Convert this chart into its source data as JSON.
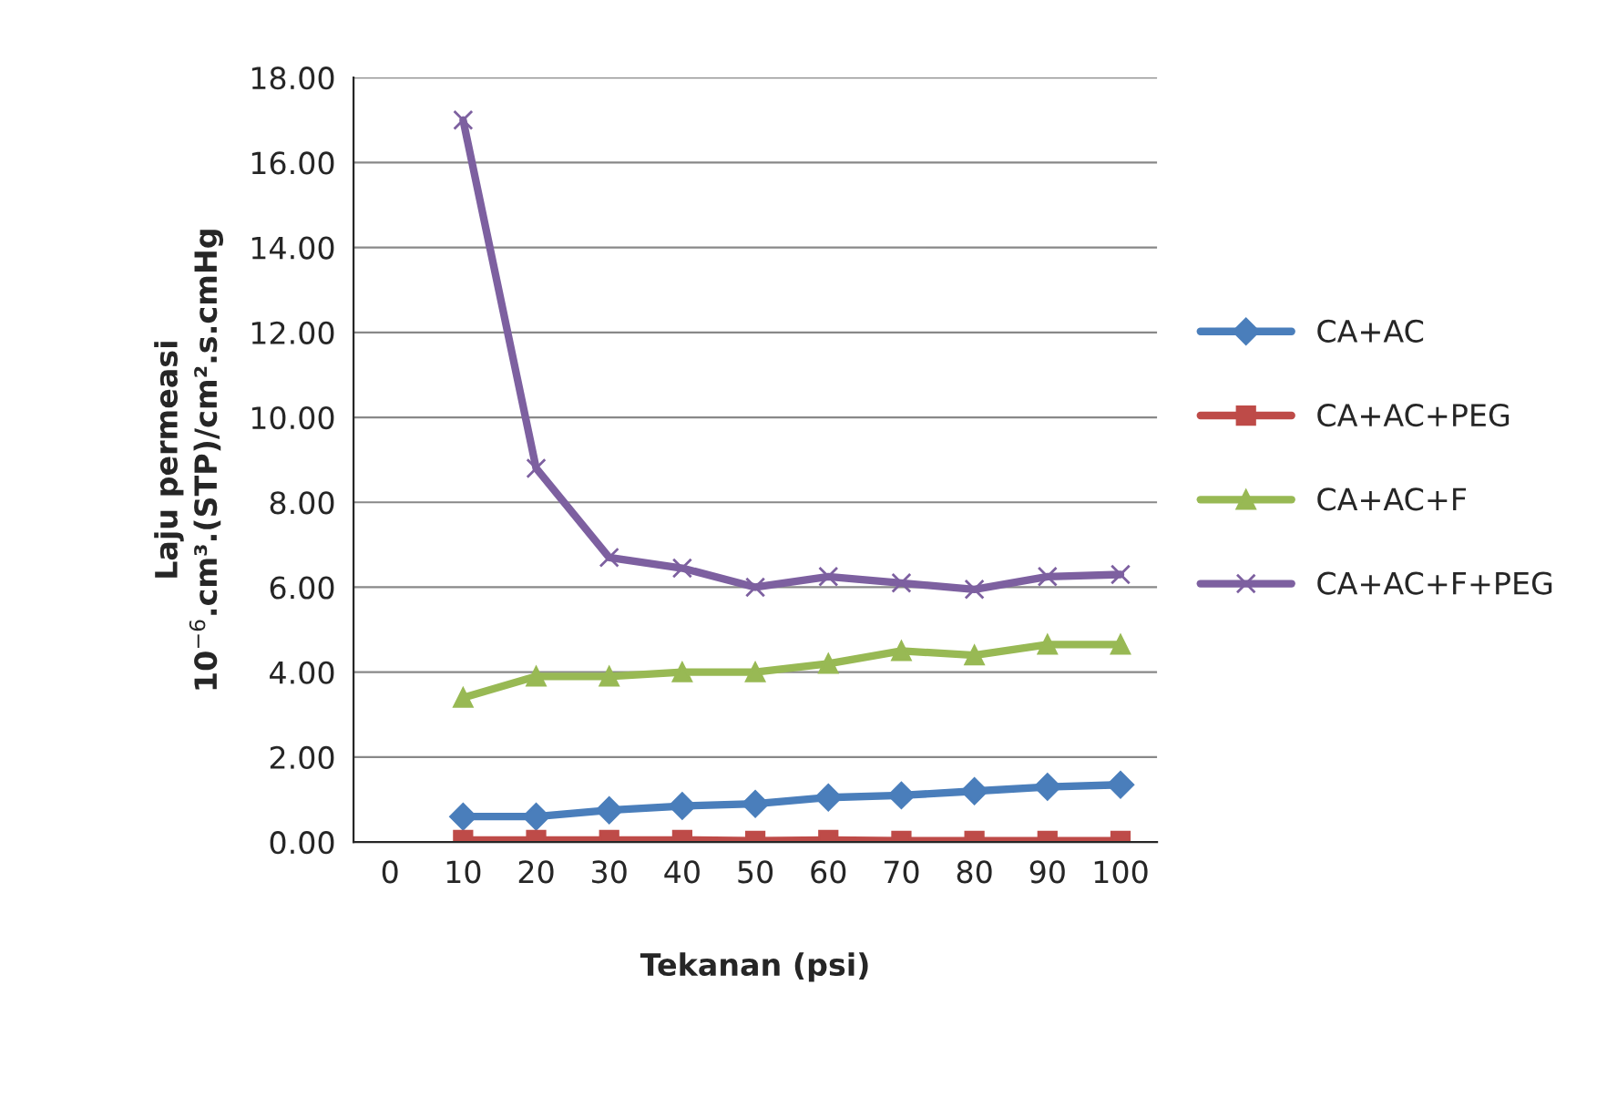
{
  "chart_data": {
    "type": "line",
    "xlabel": "Tekanan (psi)",
    "ylabel": "Laju permeasi\n10$^{−6}$.cm³.(STP)/cm².s.cmHg",
    "categories": [
      "0",
      "10",
      "20",
      "30",
      "40",
      "50",
      "60",
      "70",
      "80",
      "90",
      "100"
    ],
    "series": [
      {
        "name": "CA+AC",
        "color": "#4a7ebb",
        "marker": "diamond",
        "values": [
          null,
          0.6,
          0.6,
          0.75,
          0.85,
          0.9,
          1.05,
          1.1,
          1.2,
          1.3,
          1.35
        ]
      },
      {
        "name": "CA+AC+PEG",
        "color": "#be4b48",
        "marker": "square",
        "values": [
          null,
          0.05,
          0.05,
          0.05,
          0.05,
          0.03,
          0.05,
          0.03,
          0.03,
          0.03,
          0.03
        ]
      },
      {
        "name": "CA+AC+F",
        "color": "#98b954",
        "marker": "triangle",
        "values": [
          null,
          3.4,
          3.9,
          3.9,
          4.0,
          4.0,
          4.2,
          4.5,
          4.4,
          4.65,
          4.65
        ]
      },
      {
        "name": "CA+AC+F+PEG",
        "color": "#7d60a0",
        "marker": "cross",
        "values": [
          null,
          17.0,
          8.8,
          6.7,
          6.45,
          6.0,
          6.25,
          6.1,
          5.95,
          6.25,
          6.3
        ]
      }
    ],
    "ylim": [
      0,
      18
    ],
    "yticks": [
      {
        "value": 0,
        "label": "0.00"
      },
      {
        "value": 2,
        "label": "2.00"
      },
      {
        "value": 4,
        "label": "4.00"
      },
      {
        "value": 6,
        "label": "6.00"
      },
      {
        "value": 8,
        "label": "8.00"
      },
      {
        "value": 10,
        "label": "10.00"
      },
      {
        "value": 12,
        "label": "12.00"
      },
      {
        "value": 14,
        "label": "14.00"
      },
      {
        "value": 16,
        "label": "16.00"
      },
      {
        "value": 18,
        "label": "18.00"
      }
    ],
    "grid": "y",
    "legend": "right",
    "line_style": "solid"
  }
}
